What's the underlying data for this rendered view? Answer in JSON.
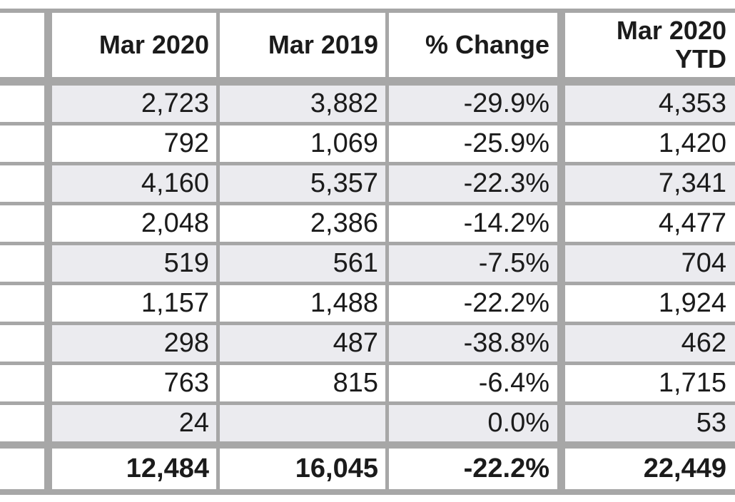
{
  "table": {
    "header": {
      "col_mar2020": "Mar 2020",
      "col_mar2019": "Mar 2019",
      "col_pct_change": "% Change",
      "col_ytd_line1": "Mar 2020",
      "col_ytd_line2": "YTD"
    },
    "rows": [
      {
        "mar2020": "2,723",
        "mar2019": "3,882",
        "pct_change": "-29.9%",
        "ytd": "4,353"
      },
      {
        "mar2020": "792",
        "mar2019": "1,069",
        "pct_change": "-25.9%",
        "ytd": "1,420"
      },
      {
        "mar2020": "4,160",
        "mar2019": "5,357",
        "pct_change": "-22.3%",
        "ytd": "7,341"
      },
      {
        "mar2020": "2,048",
        "mar2019": "2,386",
        "pct_change": "-14.2%",
        "ytd": "4,477"
      },
      {
        "mar2020": "519",
        "mar2019": "561",
        "pct_change": "-7.5%",
        "ytd": "704"
      },
      {
        "mar2020": "1,157",
        "mar2019": "1,488",
        "pct_change": "-22.2%",
        "ytd": "1,924"
      },
      {
        "mar2020": "298",
        "mar2019": "487",
        "pct_change": "-38.8%",
        "ytd": "462"
      },
      {
        "mar2020": "763",
        "mar2019": "815",
        "pct_change": "-6.4%",
        "ytd": "1,715"
      },
      {
        "mar2020": "24",
        "mar2019": "",
        "pct_change": "0.0%",
        "ytd": "53"
      }
    ],
    "total": {
      "mar2020": "12,484",
      "mar2019": "16,045",
      "pct_change": "-22.2%",
      "ytd": "22,449"
    }
  },
  "colors": {
    "border_gray": "#a7a7a7",
    "row_stripe": "#ebebef",
    "text": "#1b1b1b",
    "background": "#ffffff"
  }
}
